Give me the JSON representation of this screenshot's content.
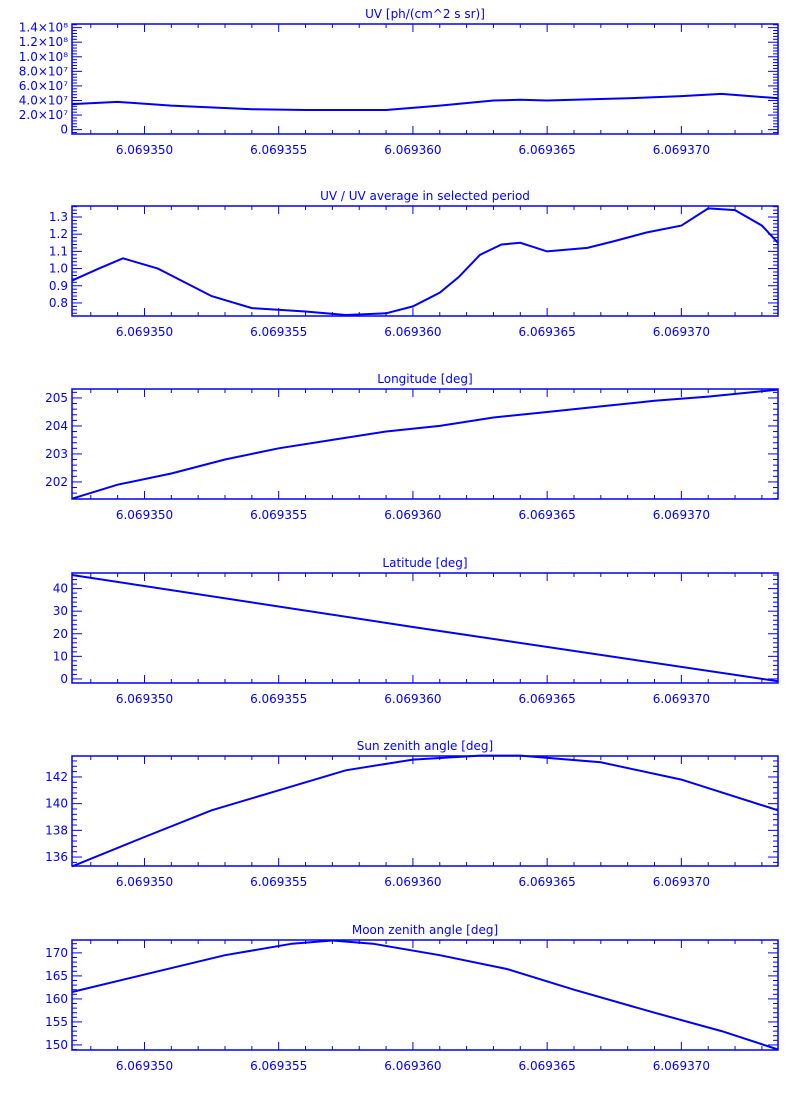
{
  "color": "#0000ff",
  "chart_data": [
    {
      "type": "line",
      "title": "UV [ph/(cm^2 s sr)]",
      "xlim": [
        6.0693473,
        6.0693736
      ],
      "ylim": [
        -6000000,
        145000000
      ],
      "xticks": [
        6.06935,
        6.069355,
        6.06936,
        6.069365,
        6.06937
      ],
      "xtick_labels": [
        "6.069350",
        "6.069355",
        "6.069360",
        "6.069365",
        "6.069370"
      ],
      "yticks": [
        0,
        20000000,
        40000000,
        60000000,
        80000000,
        100000000,
        120000000,
        140000000
      ],
      "ytick_labels": [
        "0",
        "2.0×10⁷",
        "4.0×10⁷",
        "6.0×10⁷",
        "8.0×10⁷",
        "1.0×10⁸",
        "1.2×10⁸",
        "1.4×10⁸"
      ],
      "x": [
        6.0693473,
        6.069349,
        6.069351,
        6.069354,
        6.069356,
        6.069359,
        6.069361,
        6.069363,
        6.069364,
        6.069365,
        6.069368,
        6.06937,
        6.0693715,
        6.0693736
      ],
      "y": [
        35000000,
        38000000,
        33000000,
        28000000,
        27000000,
        27000000,
        33000000,
        40000000,
        41000000,
        40000000,
        43000000,
        46000000,
        49000000,
        43000000
      ]
    },
    {
      "type": "line",
      "title": "UV / UV average in selected period",
      "xlim": [
        6.0693473,
        6.0693736
      ],
      "ylim": [
        0.724,
        1.364
      ],
      "xticks": [
        6.06935,
        6.069355,
        6.06936,
        6.069365,
        6.06937
      ],
      "xtick_labels": [
        "6.069350",
        "6.069355",
        "6.069360",
        "6.069365",
        "6.069370"
      ],
      "yticks": [
        0.8,
        0.9,
        1.0,
        1.1,
        1.2,
        1.3
      ],
      "ytick_labels": [
        "0.8",
        "0.9",
        "1.0",
        "1.1",
        "1.2",
        "1.3"
      ],
      "x": [
        6.0693473,
        6.0693483,
        6.0693492,
        6.0693505,
        6.0693525,
        6.069354,
        6.069356,
        6.0693575,
        6.069359,
        6.06936,
        6.069361,
        6.0693617,
        6.0693625,
        6.0693633,
        6.069364,
        6.069365,
        6.0693665,
        6.0693675,
        6.0693687,
        6.06937,
        6.069371,
        6.069372,
        6.069373,
        6.0693736
      ],
      "y": [
        0.93,
        1.0,
        1.06,
        1.0,
        0.84,
        0.77,
        0.75,
        0.73,
        0.74,
        0.78,
        0.86,
        0.95,
        1.08,
        1.14,
        1.15,
        1.1,
        1.12,
        1.16,
        1.21,
        1.25,
        1.35,
        1.34,
        1.25,
        1.15
      ]
    },
    {
      "type": "line",
      "title": "Longitude [deg]",
      "xlim": [
        6.0693473,
        6.0693736
      ],
      "ylim": [
        201.39,
        205.32
      ],
      "xticks": [
        6.06935,
        6.069355,
        6.06936,
        6.069365,
        6.06937
      ],
      "xtick_labels": [
        "6.069350",
        "6.069355",
        "6.069360",
        "6.069365",
        "6.069370"
      ],
      "yticks": [
        202,
        203,
        204,
        205
      ],
      "ytick_labels": [
        "202",
        "203",
        "204",
        "205"
      ],
      "x": [
        6.0693473,
        6.069349,
        6.069351,
        6.069353,
        6.069355,
        6.069357,
        6.069359,
        6.069361,
        6.069363,
        6.069365,
        6.069367,
        6.069369,
        6.069371,
        6.0693736
      ],
      "y": [
        201.4,
        201.9,
        202.3,
        202.8,
        203.2,
        203.5,
        203.8,
        204.0,
        204.3,
        204.5,
        204.7,
        204.9,
        205.05,
        205.3
      ]
    },
    {
      "type": "line",
      "title": "Latitude [deg]",
      "xlim": [
        6.0693473,
        6.0693736
      ],
      "ylim": [
        -1.8,
        46.9
      ],
      "xticks": [
        6.06935,
        6.069355,
        6.06936,
        6.069365,
        6.06937
      ],
      "xtick_labels": [
        "6.069350",
        "6.069355",
        "6.069360",
        "6.069365",
        "6.069370"
      ],
      "yticks": [
        0,
        10,
        20,
        30,
        40
      ],
      "ytick_labels": [
        "0",
        "10",
        "20",
        "30",
        "40"
      ],
      "x": [
        6.0693473,
        6.06936,
        6.0693736
      ],
      "y": [
        46.0,
        23.0,
        -1.0
      ]
    },
    {
      "type": "line",
      "title": "Sun zenith angle [deg]",
      "xlim": [
        6.0693473,
        6.0693736
      ],
      "ylim": [
        135.33,
        143.57
      ],
      "xticks": [
        6.06935,
        6.069355,
        6.06936,
        6.069365,
        6.06937
      ],
      "xtick_labels": [
        "6.069350",
        "6.069355",
        "6.069360",
        "6.069365",
        "6.069370"
      ],
      "yticks": [
        136,
        138,
        140,
        142
      ],
      "ytick_labels": [
        "136",
        "138",
        "140",
        "142"
      ],
      "x": [
        6.0693473,
        6.06935,
        6.0693525,
        6.069355,
        6.0693575,
        6.06936,
        6.0693625,
        6.069364,
        6.069367,
        6.06937,
        6.0693736
      ],
      "y": [
        135.3,
        137.5,
        139.5,
        141.0,
        142.5,
        143.3,
        143.6,
        143.6,
        143.1,
        141.8,
        139.5
      ]
    },
    {
      "type": "line",
      "title": "Moon zenith angle [deg]",
      "xlim": [
        6.0693473,
        6.0693736
      ],
      "ylim": [
        148.9,
        172.8
      ],
      "xticks": [
        6.06935,
        6.069355,
        6.06936,
        6.069365,
        6.06937
      ],
      "xtick_labels": [
        "6.069350",
        "6.069355",
        "6.069360",
        "6.069365",
        "6.069370"
      ],
      "yticks": [
        150,
        155,
        160,
        165,
        170
      ],
      "ytick_labels": [
        "150",
        "155",
        "160",
        "165",
        "170"
      ],
      "x": [
        6.0693473,
        6.0693505,
        6.069353,
        6.0693555,
        6.069357,
        6.0693585,
        6.069361,
        6.0693635,
        6.069366,
        6.069369,
        6.0693715,
        6.0693736
      ],
      "y": [
        161.5,
        166.0,
        169.5,
        172.0,
        172.7,
        172.0,
        169.5,
        166.5,
        162.0,
        157.0,
        153.0,
        149.0
      ]
    }
  ]
}
